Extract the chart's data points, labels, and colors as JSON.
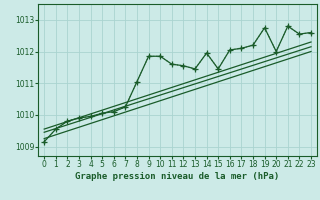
{
  "title": "Graphe pression niveau de la mer (hPa)",
  "bg_color": "#cceae7",
  "grid_color": "#aad4d0",
  "line_color": "#1a5c2a",
  "xlim": [
    -0.5,
    23.5
  ],
  "ylim": [
    1008.7,
    1013.5
  ],
  "yticks": [
    1009,
    1010,
    1011,
    1012,
    1013
  ],
  "xticks": [
    0,
    1,
    2,
    3,
    4,
    5,
    6,
    7,
    8,
    9,
    10,
    11,
    12,
    13,
    14,
    15,
    16,
    17,
    18,
    19,
    20,
    21,
    22,
    23
  ],
  "main_series": [
    [
      0,
      1009.15
    ],
    [
      1,
      1009.55
    ],
    [
      2,
      1009.8
    ],
    [
      3,
      1009.9
    ],
    [
      4,
      1009.95
    ],
    [
      5,
      1010.05
    ],
    [
      6,
      1010.1
    ],
    [
      7,
      1010.25
    ],
    [
      8,
      1011.05
    ],
    [
      9,
      1011.85
    ],
    [
      10,
      1011.85
    ],
    [
      11,
      1011.6
    ],
    [
      12,
      1011.55
    ],
    [
      13,
      1011.45
    ],
    [
      14,
      1011.95
    ],
    [
      15,
      1011.45
    ],
    [
      16,
      1012.05
    ],
    [
      17,
      1012.1
    ],
    [
      18,
      1012.2
    ],
    [
      19,
      1012.75
    ],
    [
      20,
      1012.0
    ],
    [
      21,
      1012.8
    ],
    [
      22,
      1012.55
    ],
    [
      23,
      1012.6
    ]
  ],
  "dotted_series": [
    [
      0,
      1009.15
    ],
    [
      1,
      1009.55
    ],
    [
      2,
      1009.8
    ],
    [
      3,
      1009.9
    ],
    [
      4,
      1009.95
    ],
    [
      5,
      1010.05
    ],
    [
      6,
      1010.1
    ],
    [
      7,
      1010.25
    ],
    [
      8,
      1011.05
    ],
    [
      9,
      1011.85
    ],
    [
      10,
      1011.85
    ],
    [
      11,
      1011.6
    ],
    [
      12,
      1011.55
    ],
    [
      13,
      1011.45
    ],
    [
      14,
      1011.95
    ],
    [
      15,
      1011.45
    ],
    [
      16,
      1012.05
    ],
    [
      17,
      1012.1
    ],
    [
      18,
      1012.2
    ],
    [
      19,
      1012.75
    ],
    [
      20,
      1012.0
    ],
    [
      21,
      1012.8
    ],
    [
      22,
      1012.55
    ],
    [
      23,
      1012.6
    ]
  ],
  "trend_line1": [
    [
      0,
      1009.25
    ],
    [
      23,
      1012.0
    ]
  ],
  "trend_line2": [
    [
      0,
      1009.45
    ],
    [
      23,
      1012.15
    ]
  ],
  "trend_line3": [
    [
      0,
      1009.55
    ],
    [
      23,
      1012.3
    ]
  ]
}
